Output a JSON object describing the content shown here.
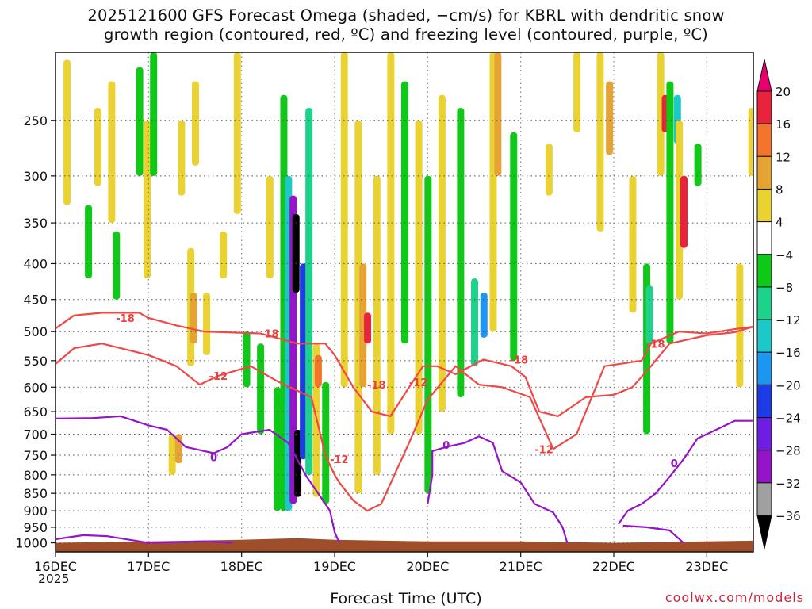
{
  "title_line1": "2025121600 GFS Forecast Omega (shaded, −cm/s) for KBRL with dendritic snow",
  "title_line2": "growth region (contoured, red, ºC) and freezing level (contoured, purple, ºC)",
  "credit": "coolwx.com/models",
  "chart_data": {
    "type": "heatmap",
    "xlabel": "Forecast Time (UTC)",
    "ylabel": "",
    "year_label": "2025",
    "x_ticks": [
      "16DEC",
      "17DEC",
      "18DEC",
      "19DEC",
      "20DEC",
      "21DEC",
      "22DEC",
      "23DEC"
    ],
    "xlim_days": [
      16.0,
      23.5
    ],
    "y_ticks": [
      250,
      300,
      350,
      400,
      450,
      500,
      550,
      600,
      650,
      700,
      750,
      800,
      850,
      900,
      950,
      1000
    ],
    "ylim_hpa": [
      1030,
      200
    ],
    "grid": "dotted",
    "colorbar": {
      "labels": [
        "20",
        "16",
        "12",
        "8",
        "4",
        "−4",
        "−8",
        "−12",
        "−16",
        "−20",
        "−24",
        "−28",
        "−32",
        "−36"
      ],
      "bins": [
        {
          "range": [
            16,
            20
          ],
          "color": "#e8243c"
        },
        {
          "range": [
            12,
            16
          ],
          "color": "#f3742c"
        },
        {
          "range": [
            8,
            12
          ],
          "color": "#e6a335"
        },
        {
          "range": [
            4,
            8
          ],
          "color": "#ead232"
        },
        {
          "range": [
            -4,
            4
          ],
          "color": "#ffffff"
        },
        {
          "range": [
            -8,
            -4
          ],
          "color": "#10c818"
        },
        {
          "range": [
            -12,
            -8
          ],
          "color": "#1ed28c"
        },
        {
          "range": [
            -16,
            -12
          ],
          "color": "#1ec8c8"
        },
        {
          "range": [
            -20,
            -16
          ],
          "color": "#1e96f0"
        },
        {
          "range": [
            -24,
            -20
          ],
          "color": "#1e3ce6"
        },
        {
          "range": [
            -28,
            -24
          ],
          "color": "#6e1ee0"
        },
        {
          "range": [
            -32,
            -28
          ],
          "color": "#9614c8"
        },
        {
          "range": [
            -36,
            -32
          ],
          "color": "#a0a0a0"
        }
      ],
      "over_color": "#e6006e",
      "under_color": "#000000"
    },
    "terrain_color": "#9e4e2a",
    "omega_cells": [
      {
        "t": 16.12,
        "p0": 205,
        "p1": 330,
        "v": 6
      },
      {
        "t": 16.35,
        "p0": 330,
        "p1": 420,
        "v": -6
      },
      {
        "t": 16.45,
        "p0": 240,
        "p1": 310,
        "v": 6
      },
      {
        "t": 16.6,
        "p0": 220,
        "p1": 350,
        "v": 6
      },
      {
        "t": 16.65,
        "p0": 360,
        "p1": 450,
        "v": -6
      },
      {
        "t": 16.9,
        "p0": 210,
        "p1": 300,
        "v": -6
      },
      {
        "t": 16.98,
        "p0": 250,
        "p1": 420,
        "v": 6
      },
      {
        "t": 17.05,
        "p0": 200,
        "p1": 300,
        "v": -6
      },
      {
        "t": 17.25,
        "p0": 700,
        "p1": 800,
        "v": 6
      },
      {
        "t": 17.32,
        "p0": 700,
        "p1": 770,
        "v": 10
      },
      {
        "t": 17.35,
        "p0": 250,
        "p1": 320,
        "v": 6
      },
      {
        "t": 17.45,
        "p0": 380,
        "p1": 560,
        "v": 6
      },
      {
        "t": 17.48,
        "p0": 440,
        "p1": 520,
        "v": 10
      },
      {
        "t": 17.5,
        "p0": 220,
        "p1": 290,
        "v": 6
      },
      {
        "t": 17.62,
        "p0": 440,
        "p1": 540,
        "v": 6
      },
      {
        "t": 17.8,
        "p0": 360,
        "p1": 420,
        "v": 6
      },
      {
        "t": 17.95,
        "p0": 200,
        "p1": 340,
        "v": 6
      },
      {
        "t": 18.05,
        "p0": 500,
        "p1": 600,
        "v": -6
      },
      {
        "t": 18.2,
        "p0": 520,
        "p1": 700,
        "v": -6
      },
      {
        "t": 18.3,
        "p0": 300,
        "p1": 420,
        "v": 6
      },
      {
        "t": 18.38,
        "p0": 600,
        "p1": 900,
        "v": -6
      },
      {
        "t": 18.45,
        "p0": 230,
        "p1": 900,
        "v": -8
      },
      {
        "t": 18.5,
        "p0": 300,
        "p1": 900,
        "v": -14
      },
      {
        "t": 18.55,
        "p0": 320,
        "p1": 880,
        "v": -30
      },
      {
        "t": 18.58,
        "p0": 340,
        "p1": 440,
        "v": -40
      },
      {
        "t": 18.6,
        "p0": 690,
        "p1": 860,
        "v": -40
      },
      {
        "t": 18.66,
        "p0": 400,
        "p1": 760,
        "v": -22
      },
      {
        "t": 18.72,
        "p0": 240,
        "p1": 800,
        "v": -10
      },
      {
        "t": 18.8,
        "p0": 520,
        "p1": 860,
        "v": 6
      },
      {
        "t": 18.82,
        "p0": 540,
        "p1": 600,
        "v": 14
      },
      {
        "t": 18.9,
        "p0": 590,
        "p1": 880,
        "v": -8
      },
      {
        "t": 19.1,
        "p0": 200,
        "p1": 600,
        "v": 6
      },
      {
        "t": 19.25,
        "p0": 250,
        "p1": 850,
        "v": 6
      },
      {
        "t": 19.3,
        "p0": 400,
        "p1": 600,
        "v": 10
      },
      {
        "t": 19.35,
        "p0": 470,
        "p1": 520,
        "v": 17
      },
      {
        "t": 19.45,
        "p0": 300,
        "p1": 800,
        "v": 6
      },
      {
        "t": 19.6,
        "p0": 200,
        "p1": 700,
        "v": 6
      },
      {
        "t": 19.75,
        "p0": 220,
        "p1": 520,
        "v": -6
      },
      {
        "t": 19.9,
        "p0": 250,
        "p1": 700,
        "v": 6
      },
      {
        "t": 20.0,
        "p0": 300,
        "p1": 850,
        "v": -6
      },
      {
        "t": 20.15,
        "p0": 230,
        "p1": 650,
        "v": 6
      },
      {
        "t": 20.35,
        "p0": 240,
        "p1": 620,
        "v": -6
      },
      {
        "t": 20.5,
        "p0": 420,
        "p1": 560,
        "v": -12
      },
      {
        "t": 20.6,
        "p0": 440,
        "p1": 510,
        "v": -18
      },
      {
        "t": 20.7,
        "p0": 200,
        "p1": 500,
        "v": 6
      },
      {
        "t": 20.75,
        "p0": 200,
        "p1": 300,
        "v": 10
      },
      {
        "t": 20.92,
        "p0": 260,
        "p1": 550,
        "v": -6
      },
      {
        "t": 21.3,
        "p0": 270,
        "p1": 320,
        "v": 6
      },
      {
        "t": 21.6,
        "p0": 200,
        "p1": 260,
        "v": 6
      },
      {
        "t": 21.85,
        "p0": 200,
        "p1": 360,
        "v": 6
      },
      {
        "t": 21.95,
        "p0": 220,
        "p1": 280,
        "v": 10
      },
      {
        "t": 22.2,
        "p0": 300,
        "p1": 470,
        "v": 6
      },
      {
        "t": 22.35,
        "p0": 400,
        "p1": 700,
        "v": -6
      },
      {
        "t": 22.38,
        "p0": 430,
        "p1": 520,
        "v": -12
      },
      {
        "t": 22.5,
        "p0": 200,
        "p1": 300,
        "v": 6
      },
      {
        "t": 22.55,
        "p0": 230,
        "p1": 260,
        "v": 16
      },
      {
        "t": 22.6,
        "p0": 220,
        "p1": 520,
        "v": -6
      },
      {
        "t": 22.68,
        "p0": 230,
        "p1": 270,
        "v": -16
      },
      {
        "t": 22.7,
        "p0": 250,
        "p1": 450,
        "v": 6
      },
      {
        "t": 22.75,
        "p0": 300,
        "p1": 380,
        "v": 18
      },
      {
        "t": 22.9,
        "p0": 270,
        "p1": 310,
        "v": -6
      },
      {
        "t": 23.35,
        "p0": 400,
        "p1": 600,
        "v": 6
      },
      {
        "t": 23.48,
        "p0": 240,
        "p1": 300,
        "v": 6
      }
    ],
    "dgz_minus12_line1": [
      [
        16.0,
        495
      ],
      [
        16.2,
        474
      ],
      [
        16.5,
        470
      ],
      [
        16.9,
        470
      ],
      [
        17.0,
        478
      ],
      [
        17.3,
        490
      ],
      [
        17.6,
        500
      ],
      [
        18.2,
        503
      ],
      [
        18.6,
        520
      ],
      [
        18.9,
        520
      ],
      [
        19.0,
        540
      ],
      [
        19.2,
        600
      ],
      [
        19.4,
        650
      ],
      [
        19.6,
        660
      ],
      [
        19.8,
        600
      ],
      [
        19.95,
        560
      ],
      [
        20.1,
        560
      ],
      [
        20.3,
        575
      ],
      [
        20.6,
        548
      ],
      [
        20.9,
        560
      ],
      [
        21.05,
        580
      ],
      [
        21.2,
        650
      ],
      [
        21.4,
        660
      ],
      [
        21.7,
        620
      ],
      [
        22.0,
        615
      ],
      [
        22.2,
        600
      ],
      [
        22.4,
        560
      ],
      [
        22.6,
        520
      ],
      [
        23.0,
        506
      ],
      [
        23.3,
        501
      ],
      [
        23.5,
        492
      ]
    ],
    "dgz_minus12_line2": [
      [
        16.0,
        556
      ],
      [
        16.2,
        528
      ],
      [
        16.5,
        520
      ],
      [
        17.0,
        540
      ],
      [
        17.3,
        560
      ],
      [
        17.55,
        595
      ],
      [
        17.75,
        578
      ],
      [
        18.1,
        560
      ],
      [
        18.4,
        590
      ],
      [
        18.75,
        620
      ],
      [
        18.9,
        750
      ],
      [
        19.0,
        800
      ],
      [
        19.05,
        820
      ],
      [
        19.2,
        870
      ],
      [
        19.35,
        900
      ],
      [
        19.5,
        880
      ],
      [
        19.8,
        720
      ],
      [
        20.0,
        625
      ],
      [
        20.3,
        560
      ],
      [
        20.55,
        595
      ],
      [
        20.8,
        600
      ],
      [
        21.1,
        620
      ],
      [
        21.35,
        735
      ],
      [
        21.6,
        700
      ],
      [
        21.9,
        560
      ],
      [
        22.3,
        550
      ],
      [
        22.4,
        520
      ],
      [
        22.7,
        500
      ],
      [
        23.0,
        503
      ],
      [
        23.3,
        496
      ],
      [
        23.5,
        492
      ]
    ],
    "freezing_level_line": [
      [
        16.0,
        665
      ],
      [
        16.4,
        664
      ],
      [
        16.7,
        660
      ],
      [
        17.0,
        680
      ],
      [
        17.2,
        690
      ],
      [
        17.4,
        730
      ],
      [
        17.7,
        745
      ],
      [
        17.85,
        730
      ],
      [
        18.0,
        700
      ],
      [
        18.3,
        690
      ],
      [
        18.5,
        720
      ],
      [
        18.7,
        805
      ],
      [
        18.85,
        860
      ],
      [
        18.95,
        900
      ],
      [
        19.0,
        965
      ],
      [
        19.05,
        1000
      ]
    ],
    "freezing_level_line2": [
      [
        20.0,
        880
      ],
      [
        20.05,
        800
      ],
      [
        20.05,
        740
      ],
      [
        20.2,
        730
      ],
      [
        20.4,
        720
      ],
      [
        20.55,
        705
      ],
      [
        20.7,
        720
      ],
      [
        20.8,
        790
      ],
      [
        21.0,
        820
      ],
      [
        21.15,
        880
      ],
      [
        21.35,
        905
      ],
      [
        21.45,
        950
      ],
      [
        21.5,
        1000
      ]
    ],
    "freezing_level_line3": [
      [
        22.05,
        940
      ],
      [
        22.15,
        900
      ],
      [
        22.3,
        880
      ],
      [
        22.45,
        850
      ],
      [
        22.55,
        820
      ],
      [
        22.65,
        790
      ],
      [
        22.75,
        760
      ],
      [
        22.9,
        710
      ],
      [
        23.1,
        690
      ],
      [
        23.3,
        670
      ],
      [
        23.5,
        670
      ]
    ],
    "freezing_level_line4": [
      [
        16.0,
        988
      ],
      [
        16.3,
        975
      ],
      [
        16.55,
        978
      ],
      [
        17.0,
        1000
      ],
      [
        17.6,
        995
      ],
      [
        17.9,
        1000
      ]
    ],
    "freezing_level_line5": [
      [
        22.1,
        945
      ],
      [
        22.35,
        950
      ],
      [
        22.6,
        960
      ],
      [
        22.75,
        1000
      ]
    ],
    "contour_labels": [
      {
        "text": "-18",
        "t": 16.75,
        "p": 478,
        "color": "#f03c3c"
      },
      {
        "text": "-12",
        "t": 17.75,
        "p": 578,
        "color": "#f03c3c"
      },
      {
        "text": "-18",
        "t": 18.3,
        "p": 503,
        "color": "#f03c3c"
      },
      {
        "text": "-12",
        "t": 19.05,
        "p": 760,
        "color": "#f03c3c"
      },
      {
        "text": "-18",
        "t": 19.45,
        "p": 595,
        "color": "#f03c3c"
      },
      {
        "text": "-12",
        "t": 19.9,
        "p": 590,
        "color": "#f03c3c"
      },
      {
        "text": "-18",
        "t": 20.98,
        "p": 548,
        "color": "#f03c3c"
      },
      {
        "text": "-12",
        "t": 21.25,
        "p": 735,
        "color": "#f03c3c"
      },
      {
        "text": "-18",
        "t": 22.45,
        "p": 520,
        "color": "#f03c3c"
      },
      {
        "text": "0",
        "t": 17.7,
        "p": 755,
        "color": "#9614c8"
      },
      {
        "text": "0",
        "t": 20.2,
        "p": 725,
        "color": "#9614c8"
      },
      {
        "text": "0",
        "t": 22.65,
        "p": 770,
        "color": "#9614c8"
      }
    ],
    "terrain_top_hpa": [
      [
        16.0,
        1000
      ],
      [
        17.0,
        995
      ],
      [
        18.0,
        990
      ],
      [
        18.6,
        985
      ],
      [
        19.0,
        990
      ],
      [
        20.0,
        995
      ],
      [
        21.0,
        995
      ],
      [
        22.0,
        1000
      ],
      [
        23.0,
        995
      ],
      [
        23.5,
        993
      ]
    ]
  }
}
